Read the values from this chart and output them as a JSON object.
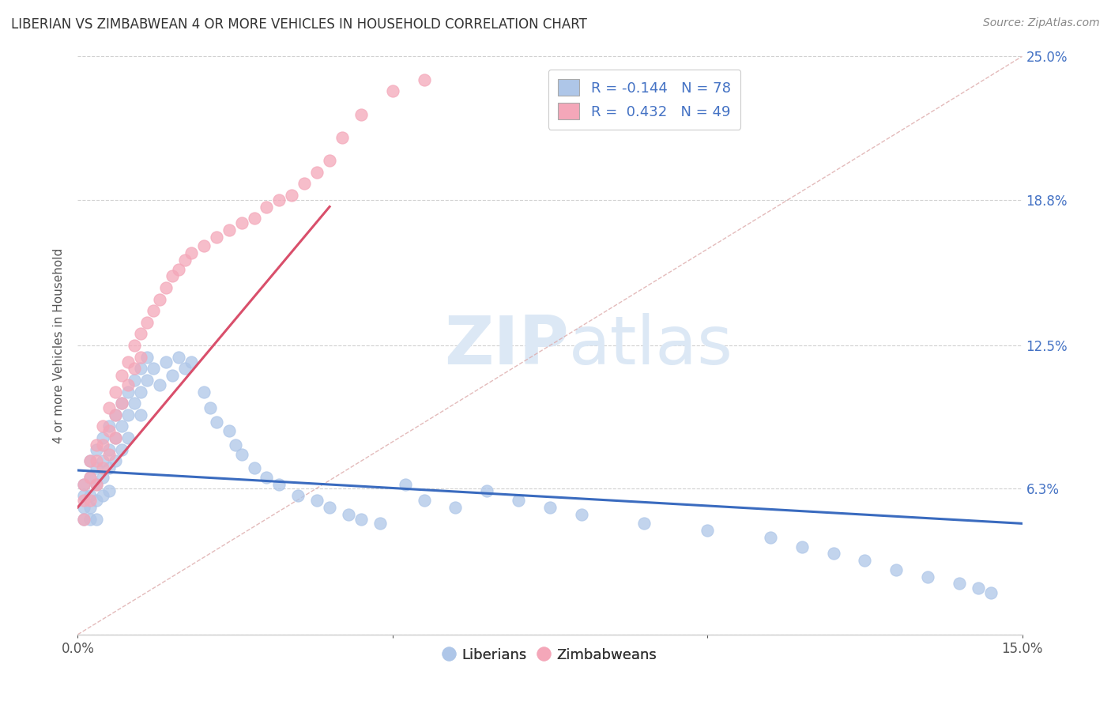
{
  "title": "LIBERIAN VS ZIMBABWEAN 4 OR MORE VEHICLES IN HOUSEHOLD CORRELATION CHART",
  "source": "Source: ZipAtlas.com",
  "ylabel": "4 or more Vehicles in Household",
  "xlim": [
    0.0,
    0.15
  ],
  "ylim": [
    0.0,
    0.25
  ],
  "ytick_positions": [
    0.0,
    0.063,
    0.125,
    0.188,
    0.25
  ],
  "ytick_labels": [
    "",
    "6.3%",
    "12.5%",
    "18.8%",
    "25.0%"
  ],
  "xtick_positions": [
    0.0,
    0.05,
    0.1,
    0.15
  ],
  "xtick_labels": [
    "0.0%",
    "",
    "",
    "15.0%"
  ],
  "liberian_R": -0.144,
  "liberian_N": 78,
  "zimbabwean_R": 0.432,
  "zimbabwean_N": 49,
  "liberian_color": "#aec6e8",
  "zimbabwean_color": "#f4a7b9",
  "liberian_line_color": "#3a6bbf",
  "zimbabwean_line_color": "#d94f6b",
  "diagonal_color": "#ddaaaa",
  "watermark_color": "#dce8f5",
  "lib_line_x0": 0.0,
  "lib_line_y0": 0.071,
  "lib_line_x1": 0.15,
  "lib_line_y1": 0.048,
  "zim_line_x0": 0.0,
  "zim_line_y0": 0.055,
  "zim_line_x1": 0.04,
  "zim_line_y1": 0.185,
  "liberian_x": [
    0.001,
    0.001,
    0.001,
    0.001,
    0.002,
    0.002,
    0.002,
    0.002,
    0.002,
    0.003,
    0.003,
    0.003,
    0.003,
    0.003,
    0.004,
    0.004,
    0.004,
    0.004,
    0.005,
    0.005,
    0.005,
    0.005,
    0.006,
    0.006,
    0.006,
    0.007,
    0.007,
    0.007,
    0.008,
    0.008,
    0.008,
    0.009,
    0.009,
    0.01,
    0.01,
    0.01,
    0.011,
    0.011,
    0.012,
    0.013,
    0.014,
    0.015,
    0.016,
    0.017,
    0.018,
    0.02,
    0.021,
    0.022,
    0.024,
    0.025,
    0.026,
    0.028,
    0.03,
    0.032,
    0.035,
    0.038,
    0.04,
    0.043,
    0.045,
    0.048,
    0.052,
    0.055,
    0.06,
    0.065,
    0.07,
    0.075,
    0.08,
    0.09,
    0.1,
    0.11,
    0.115,
    0.12,
    0.125,
    0.13,
    0.135,
    0.14,
    0.143,
    0.145
  ],
  "liberian_y": [
    0.065,
    0.06,
    0.055,
    0.05,
    0.075,
    0.068,
    0.06,
    0.055,
    0.05,
    0.08,
    0.072,
    0.065,
    0.058,
    0.05,
    0.085,
    0.075,
    0.068,
    0.06,
    0.09,
    0.08,
    0.072,
    0.062,
    0.095,
    0.085,
    0.075,
    0.1,
    0.09,
    0.08,
    0.105,
    0.095,
    0.085,
    0.11,
    0.1,
    0.115,
    0.105,
    0.095,
    0.12,
    0.11,
    0.115,
    0.108,
    0.118,
    0.112,
    0.12,
    0.115,
    0.118,
    0.105,
    0.098,
    0.092,
    0.088,
    0.082,
    0.078,
    0.072,
    0.068,
    0.065,
    0.06,
    0.058,
    0.055,
    0.052,
    0.05,
    0.048,
    0.065,
    0.058,
    0.055,
    0.062,
    0.058,
    0.055,
    0.052,
    0.048,
    0.045,
    0.042,
    0.038,
    0.035,
    0.032,
    0.028,
    0.025,
    0.022,
    0.02,
    0.018
  ],
  "zimbabwean_x": [
    0.001,
    0.001,
    0.001,
    0.002,
    0.002,
    0.002,
    0.003,
    0.003,
    0.003,
    0.004,
    0.004,
    0.004,
    0.005,
    0.005,
    0.005,
    0.006,
    0.006,
    0.006,
    0.007,
    0.007,
    0.008,
    0.008,
    0.009,
    0.009,
    0.01,
    0.01,
    0.011,
    0.012,
    0.013,
    0.014,
    0.015,
    0.016,
    0.017,
    0.018,
    0.02,
    0.022,
    0.024,
    0.026,
    0.028,
    0.03,
    0.032,
    0.034,
    0.036,
    0.038,
    0.04,
    0.042,
    0.045,
    0.05,
    0.055
  ],
  "zimbabwean_y": [
    0.065,
    0.058,
    0.05,
    0.075,
    0.068,
    0.058,
    0.082,
    0.075,
    0.065,
    0.09,
    0.082,
    0.072,
    0.098,
    0.088,
    0.078,
    0.105,
    0.095,
    0.085,
    0.112,
    0.1,
    0.118,
    0.108,
    0.125,
    0.115,
    0.13,
    0.12,
    0.135,
    0.14,
    0.145,
    0.15,
    0.155,
    0.158,
    0.162,
    0.165,
    0.168,
    0.172,
    0.175,
    0.178,
    0.18,
    0.185,
    0.188,
    0.19,
    0.195,
    0.2,
    0.205,
    0.215,
    0.225,
    0.235,
    0.24
  ]
}
